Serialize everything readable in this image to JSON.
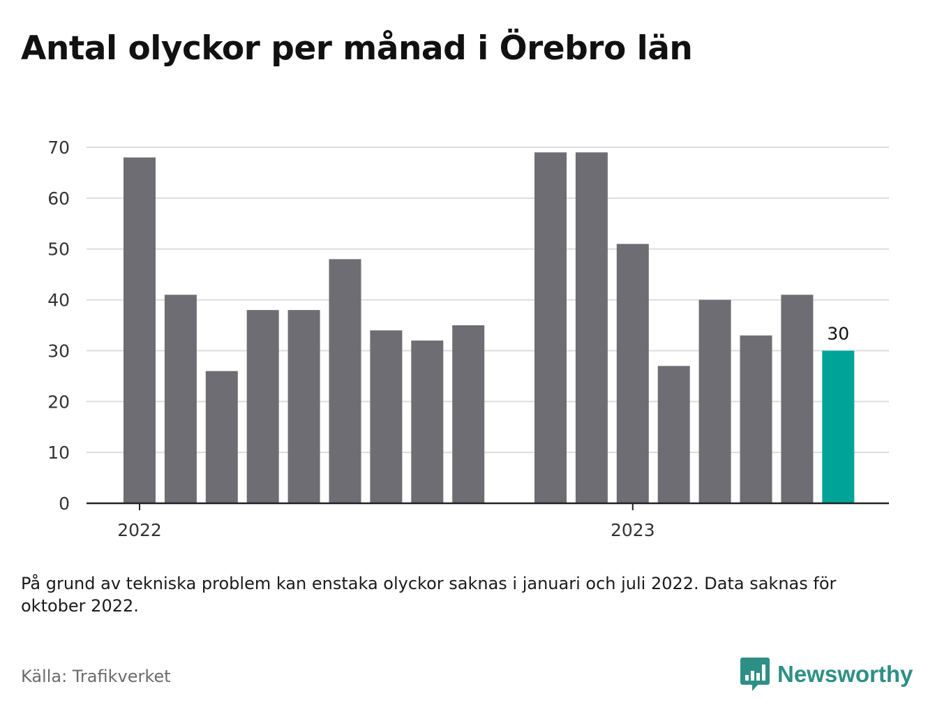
{
  "title": "Antal olyckor per månad i Örebro län",
  "chart_data": {
    "type": "bar",
    "yticks": [
      0,
      10,
      20,
      30,
      40,
      50,
      60,
      70
    ],
    "ylim": [
      0,
      70
    ],
    "grid": true,
    "year_labels": [
      "2022",
      "2023"
    ],
    "series": [
      {
        "values": [
          68,
          41,
          26,
          38,
          38,
          48,
          34,
          32,
          35,
          null,
          69,
          69,
          51,
          27,
          40,
          33,
          41,
          30
        ]
      }
    ],
    "highlight_value_label": "30",
    "colors": {
      "bar": "#6e6d73",
      "highlight": "#00a398",
      "grid": "#dddddd",
      "axis": "#222222"
    }
  },
  "note": "På grund av tekniska problem kan enstaka olyckor saknas i januari och juli 2022. Data saknas för oktober 2022.",
  "source": "Källa: Trafikverket",
  "brand": {
    "name": "Newsworthy",
    "icon": "bar-chart-speech-bubble-icon",
    "color": "#2e8f86"
  }
}
